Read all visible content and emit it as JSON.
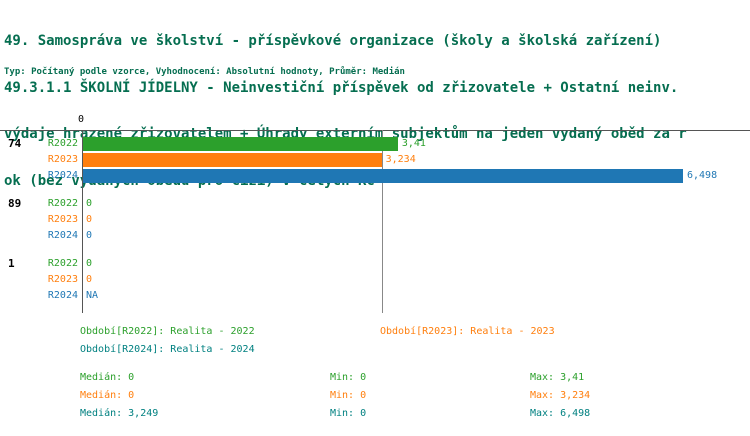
{
  "title": {
    "line1": "49. Samospráva ve školství - příspěvkové organizace (školy a školská zařízení)",
    "line2": "49.3.1.1 ŠKOLNÍ JÍDELNY - Neinvestiční příspěvek od zřizovatele + Ostatní neinv.",
    "line3": "výdaje hrazené zřizovatelem + Úhrady externím subjektům na jeden vydaný oběd za r",
    "line4": "ok (bez vydaných obědů pro cizí) v celých Kč",
    "meta": "Typ: Počítaný podle vzorce, Vyhodnocení: Absolutní hodnoty, Průměr: Medián"
  },
  "colors": {
    "R2022": "#2ca02c",
    "R2023": "#ff7f0e",
    "R2024": "#1f77b4",
    "footer_r2024": "#008080",
    "title": "#056e50"
  },
  "chart_data": {
    "type": "bar",
    "orientation": "horizontal",
    "x_axis": {
      "zero_label": "0",
      "min": 0,
      "max": 6.498
    },
    "median_gridline": 3.249,
    "series_names": [
      "R2022",
      "R2023",
      "R2024"
    ],
    "groups": [
      {
        "label": "74",
        "bars": [
          {
            "series": "R2022",
            "value": 3.41,
            "display": "3,41"
          },
          {
            "series": "R2023",
            "value": 3.234,
            "display": "3,234"
          },
          {
            "series": "R2024",
            "value": 6.498,
            "display": "6,498"
          }
        ]
      },
      {
        "label": "89",
        "bars": [
          {
            "series": "R2022",
            "value": 0,
            "display": "0"
          },
          {
            "series": "R2023",
            "value": 0,
            "display": "0"
          },
          {
            "series": "R2024",
            "value": 0,
            "display": "0"
          }
        ]
      },
      {
        "label": "1",
        "bars": [
          {
            "series": "R2022",
            "value": 0,
            "display": "0"
          },
          {
            "series": "R2023",
            "value": 0,
            "display": "0"
          },
          {
            "series": "R2024",
            "value": null,
            "display": "NA"
          }
        ]
      }
    ]
  },
  "legend": {
    "r2022": "Období[R2022]: Realita - 2022",
    "r2023": "Období[R2023]: Realita - 2023",
    "r2024": "Období[R2024]: Realita - 2024"
  },
  "stats": {
    "rows": [
      {
        "series": "R2022",
        "median": "Medián: 0",
        "min": "Min: 0",
        "max": "Max: 3,41"
      },
      {
        "series": "R2023",
        "median": "Medián: 0",
        "min": "Min: 0",
        "max": "Max: 3,234"
      },
      {
        "series": "R2024",
        "median": "Medián: 3,249",
        "min": "Min: 0",
        "max": "Max: 6,498"
      }
    ]
  }
}
